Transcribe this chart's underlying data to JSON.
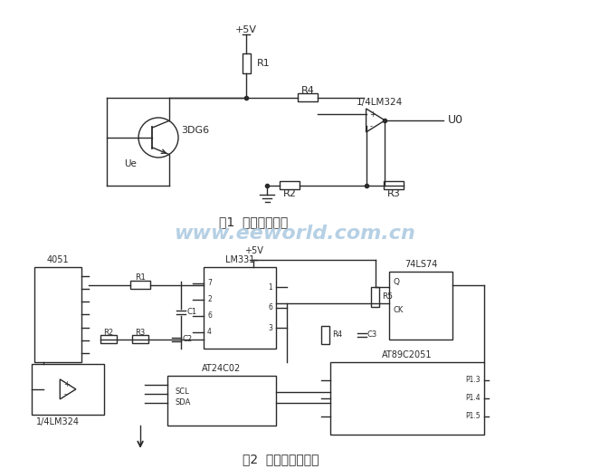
{
  "bg_color": "#ffffff",
  "line_color": "#2a2a2a",
  "watermark_text": "www.eeworld.com.cn",
  "watermark_color": "#aac8e0",
  "fig1_caption": "图1  测量放大电路",
  "fig2_caption": "图2  检测与处理电路"
}
